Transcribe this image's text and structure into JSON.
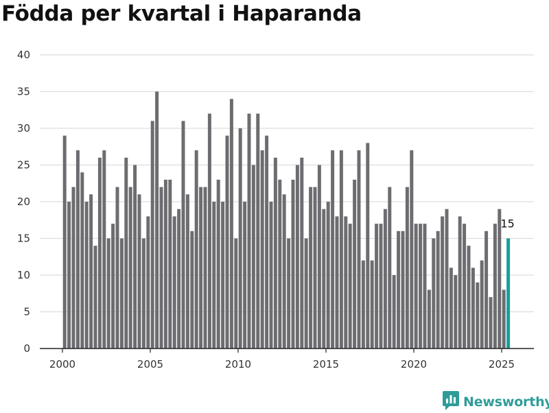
{
  "title": "Födda per kvartal i Haparanda",
  "brand": {
    "name": "Newsworthy",
    "icon": "newsworthy-logo-icon",
    "color": "#2f9c98"
  },
  "colors": {
    "bar": "#6d6c70",
    "highlight": "#17a09b",
    "grid": "#dddddd",
    "axis": "#222222"
  },
  "chart_data": {
    "type": "bar",
    "title": "Födda per kvartal i Haparanda",
    "xlabel": "",
    "ylabel": "",
    "ylim": [
      0,
      40
    ],
    "yticks": [
      0,
      5,
      10,
      15,
      20,
      25,
      30,
      35,
      40
    ],
    "xticks": [
      "2000",
      "2005",
      "2010",
      "2015",
      "2020",
      "2025"
    ],
    "grid": true,
    "start": "2000 Q1",
    "end": "2025 Q2",
    "values": [
      29,
      20,
      22,
      27,
      24,
      20,
      21,
      14,
      26,
      27,
      15,
      17,
      22,
      15,
      26,
      22,
      25,
      21,
      15,
      18,
      31,
      35,
      22,
      23,
      23,
      18,
      19,
      31,
      21,
      16,
      27,
      22,
      22,
      32,
      20,
      23,
      20,
      29,
      34,
      15,
      30,
      20,
      32,
      25,
      32,
      27,
      29,
      20,
      26,
      23,
      21,
      15,
      23,
      25,
      26,
      15,
      22,
      22,
      25,
      19,
      20,
      27,
      18,
      27,
      18,
      17,
      23,
      27,
      12,
      28,
      12,
      17,
      17,
      19,
      22,
      10,
      16,
      16,
      22,
      27,
      17,
      17,
      17,
      8,
      15,
      16,
      18,
      19,
      11,
      10,
      18,
      17,
      14,
      11,
      9,
      12,
      16,
      7,
      17,
      19,
      8,
      15
    ],
    "highlight": {
      "index": 101,
      "value": 15,
      "label": "15"
    }
  }
}
